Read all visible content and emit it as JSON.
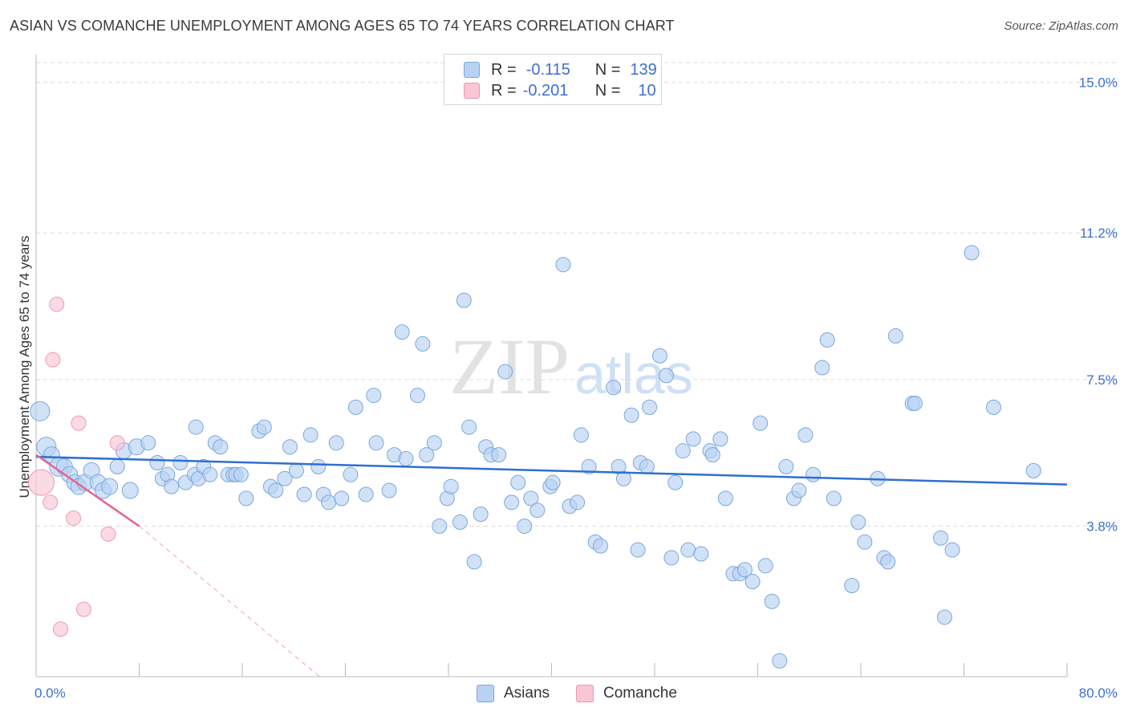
{
  "title": "ASIAN VS COMANCHE UNEMPLOYMENT AMONG AGES 65 TO 74 YEARS CORRELATION CHART",
  "source": "Source: ZipAtlas.com",
  "watermark": {
    "zip": "ZIP",
    "atlas": "atlas"
  },
  "legend_top": {
    "asians": {
      "r_label": "R =",
      "r_value": "-0.115",
      "n_label": "N =",
      "n_value": "139"
    },
    "comanche": {
      "r_label": "R =",
      "r_value": "-0.201",
      "n_label": "N =",
      "n_value": "10"
    }
  },
  "legend_bottom": {
    "asians": "Asians",
    "comanche": "Comanche"
  },
  "colors": {
    "asian_fill": "#b8d2f3",
    "asian_stroke": "#7aa6e0",
    "asian_line": "#2f6fd0",
    "comanche_fill": "#f9c6d4",
    "comanche_stroke": "#ee97b0",
    "comanche_line": "#e8638e",
    "grid": "#dcdcdc",
    "axis_text": "#3d6fd0"
  },
  "chart_data": {
    "type": "scatter",
    "title": "ASIAN VS COMANCHE UNEMPLOYMENT AMONG AGES 65 TO 74 YEARS CORRELATION CHART",
    "xlabel": "",
    "ylabel": "Unemployment Among Ages 65 to 74 years",
    "xlim": [
      0,
      80
    ],
    "ylim": [
      0,
      15.5
    ],
    "x_tick_labels": [
      "0.0%",
      "80.0%"
    ],
    "y_ticks": [
      3.8,
      7.5,
      11.2,
      15.0
    ],
    "y_tick_labels": [
      "3.8%",
      "7.5%",
      "11.2%",
      "15.0%"
    ],
    "grid": true,
    "series": [
      {
        "name": "Asians",
        "trend": {
          "x": [
            0,
            80
          ],
          "y": [
            5.55,
            4.85
          ],
          "dashed_extension": false
        },
        "points": [
          [
            0.3,
            6.7,
            2
          ],
          [
            0.8,
            5.8,
            2
          ],
          [
            1.2,
            5.6,
            1
          ],
          [
            1.8,
            5.3,
            2
          ],
          [
            2.2,
            5.3,
            1
          ],
          [
            2.6,
            5.1,
            1
          ],
          [
            3.0,
            4.9,
            1
          ],
          [
            3.3,
            4.8,
            1
          ],
          [
            3.8,
            4.9,
            1
          ],
          [
            4.3,
            5.2,
            1
          ],
          [
            4.8,
            4.9,
            1
          ],
          [
            5.2,
            4.7,
            1
          ],
          [
            5.7,
            4.8,
            1
          ],
          [
            6.3,
            5.3,
            0
          ],
          [
            6.8,
            5.7,
            1
          ],
          [
            7.3,
            4.7,
            1
          ],
          [
            7.8,
            5.8,
            1
          ],
          [
            8.7,
            5.9,
            0
          ],
          [
            9.4,
            5.4,
            0
          ],
          [
            9.8,
            5.0,
            0
          ],
          [
            10.2,
            5.1,
            0
          ],
          [
            10.5,
            4.8,
            0
          ],
          [
            11.2,
            5.4,
            0
          ],
          [
            11.6,
            4.9,
            0
          ],
          [
            12.3,
            5.1,
            0
          ],
          [
            12.4,
            6.3,
            0
          ],
          [
            12.6,
            5.0,
            0
          ],
          [
            13.0,
            5.3,
            0
          ],
          [
            13.5,
            5.1,
            0
          ],
          [
            13.9,
            5.9,
            0
          ],
          [
            14.3,
            5.8,
            0
          ],
          [
            14.9,
            5.1,
            0
          ],
          [
            15.3,
            5.1,
            0
          ],
          [
            15.5,
            5.1,
            0
          ],
          [
            15.9,
            5.1,
            0
          ],
          [
            16.3,
            4.5,
            0
          ],
          [
            17.3,
            6.2,
            0
          ],
          [
            17.7,
            6.3,
            0
          ],
          [
            18.2,
            4.8,
            0
          ],
          [
            18.6,
            4.7,
            0
          ],
          [
            19.3,
            5.0,
            0
          ],
          [
            19.7,
            5.8,
            0
          ],
          [
            20.2,
            5.2,
            0
          ],
          [
            20.8,
            4.6,
            0
          ],
          [
            21.3,
            6.1,
            0
          ],
          [
            21.9,
            5.3,
            0
          ],
          [
            22.3,
            4.6,
            0
          ],
          [
            22.7,
            4.4,
            0
          ],
          [
            23.3,
            5.9,
            0
          ],
          [
            23.7,
            4.5,
            0
          ],
          [
            24.4,
            5.1,
            0
          ],
          [
            24.8,
            6.8,
            0
          ],
          [
            25.6,
            4.6,
            0
          ],
          [
            26.2,
            7.1,
            0
          ],
          [
            26.4,
            5.9,
            0
          ],
          [
            27.4,
            4.7,
            0
          ],
          [
            27.8,
            5.6,
            0
          ],
          [
            28.4,
            8.7,
            0
          ],
          [
            28.7,
            5.5,
            0
          ],
          [
            29.6,
            7.1,
            0
          ],
          [
            30.0,
            8.4,
            0
          ],
          [
            30.3,
            5.6,
            0
          ],
          [
            30.9,
            5.9,
            0
          ],
          [
            31.3,
            3.8,
            0
          ],
          [
            31.9,
            4.5,
            0
          ],
          [
            32.2,
            4.8,
            0
          ],
          [
            32.9,
            3.9,
            0
          ],
          [
            33.2,
            9.5,
            0
          ],
          [
            33.6,
            6.3,
            0
          ],
          [
            34.0,
            2.9,
            0
          ],
          [
            34.5,
            4.1,
            0
          ],
          [
            34.9,
            5.8,
            0
          ],
          [
            35.3,
            5.6,
            0
          ],
          [
            35.9,
            5.6,
            0
          ],
          [
            36.4,
            7.7,
            0
          ],
          [
            36.9,
            4.4,
            0
          ],
          [
            37.4,
            4.9,
            0
          ],
          [
            37.9,
            3.8,
            0
          ],
          [
            38.4,
            4.5,
            0
          ],
          [
            38.9,
            4.2,
            0
          ],
          [
            39.9,
            4.8,
            0
          ],
          [
            40.1,
            4.9,
            0
          ],
          [
            40.9,
            10.4,
            0
          ],
          [
            41.4,
            4.3,
            0
          ],
          [
            42.0,
            4.4,
            0
          ],
          [
            42.3,
            6.1,
            0
          ],
          [
            42.9,
            5.3,
            0
          ],
          [
            43.4,
            3.4,
            0
          ],
          [
            43.8,
            3.3,
            0
          ],
          [
            44.8,
            7.3,
            0
          ],
          [
            45.2,
            5.3,
            0
          ],
          [
            45.6,
            5.0,
            0
          ],
          [
            46.2,
            6.6,
            0
          ],
          [
            46.7,
            3.2,
            0
          ],
          [
            46.9,
            5.4,
            0
          ],
          [
            47.4,
            5.3,
            0
          ],
          [
            47.6,
            6.8,
            0
          ],
          [
            48.4,
            8.1,
            0
          ],
          [
            48.9,
            7.6,
            0
          ],
          [
            49.3,
            3.0,
            0
          ],
          [
            49.6,
            4.9,
            0
          ],
          [
            50.2,
            5.7,
            0
          ],
          [
            50.6,
            3.2,
            0
          ],
          [
            51.0,
            6.0,
            0
          ],
          [
            51.6,
            3.1,
            0
          ],
          [
            52.3,
            5.7,
            0
          ],
          [
            52.5,
            5.6,
            0
          ],
          [
            53.1,
            6.0,
            0
          ],
          [
            53.5,
            4.5,
            0
          ],
          [
            54.1,
            2.6,
            0
          ],
          [
            54.6,
            2.6,
            0
          ],
          [
            55.0,
            2.7,
            0
          ],
          [
            55.6,
            2.4,
            0
          ],
          [
            56.2,
            6.4,
            0
          ],
          [
            56.6,
            2.8,
            0
          ],
          [
            57.1,
            1.9,
            0
          ],
          [
            57.7,
            0.4,
            0
          ],
          [
            58.2,
            5.3,
            0
          ],
          [
            58.8,
            4.5,
            0
          ],
          [
            59.2,
            4.7,
            0
          ],
          [
            59.7,
            6.1,
            0
          ],
          [
            60.3,
            5.1,
            0
          ],
          [
            61.0,
            7.8,
            0
          ],
          [
            61.4,
            8.5,
            0
          ],
          [
            61.9,
            4.5,
            0
          ],
          [
            63.3,
            2.3,
            0
          ],
          [
            63.8,
            3.9,
            0
          ],
          [
            64.3,
            3.4,
            0
          ],
          [
            65.3,
            5.0,
            0
          ],
          [
            65.8,
            3.0,
            0
          ],
          [
            66.1,
            2.9,
            0
          ],
          [
            66.7,
            8.6,
            0
          ],
          [
            68.0,
            6.9,
            0
          ],
          [
            68.2,
            6.9,
            0
          ],
          [
            70.2,
            3.5,
            0
          ],
          [
            70.5,
            1.5,
            0
          ],
          [
            71.1,
            3.2,
            0
          ],
          [
            72.6,
            10.7,
            0
          ],
          [
            74.3,
            6.8,
            0
          ],
          [
            77.4,
            5.2,
            0
          ]
        ]
      },
      {
        "name": "Comanche",
        "trend": {
          "x": [
            0,
            8.0,
            22.0
          ],
          "y": [
            5.6,
            3.8,
            0.0
          ],
          "dashed_extension": true
        },
        "points": [
          [
            0.4,
            4.9,
            4
          ],
          [
            1.1,
            4.4,
            0
          ],
          [
            1.3,
            8.0,
            0
          ],
          [
            1.6,
            9.4,
            0
          ],
          [
            1.9,
            1.2,
            0
          ],
          [
            2.9,
            4.0,
            0
          ],
          [
            3.3,
            6.4,
            0
          ],
          [
            3.7,
            1.7,
            0
          ],
          [
            5.6,
            3.6,
            0
          ],
          [
            6.3,
            5.9,
            0
          ]
        ]
      }
    ]
  }
}
